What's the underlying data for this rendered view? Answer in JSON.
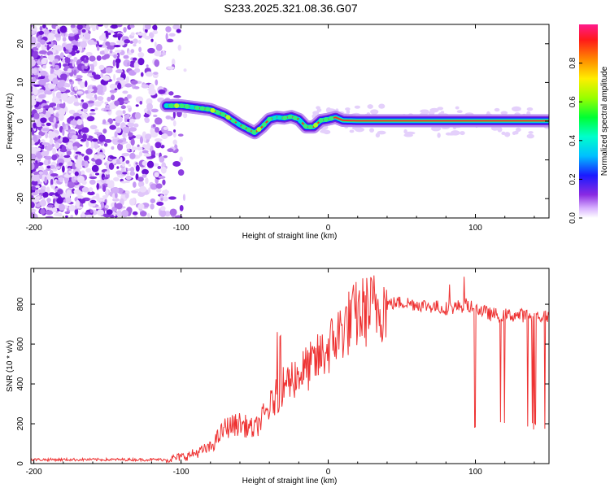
{
  "title": "S233.2025.321.08.36.G07",
  "chart_data": [
    {
      "type": "heatmap",
      "title": "S233.2025.321.08.36.G07",
      "xlabel": "Height of straight line (km)",
      "ylabel": "Frequency (Hz)",
      "xlim": [
        -202,
        150
      ],
      "ylim": [
        -25,
        25
      ],
      "xticks": [
        -200,
        -100,
        0,
        100
      ],
      "yticks": [
        -20,
        -10,
        0,
        10,
        20
      ],
      "colorbar": {
        "label": "Normalized spectral amplitude",
        "range": [
          0.0,
          1.0
        ],
        "ticks": [
          "0.0",
          "0.2",
          "0.4",
          "0.6",
          "0.8"
        ]
      },
      "ridge": {
        "x": [
          -110,
          -100,
          -90,
          -80,
          -70,
          -60,
          -50,
          -45,
          -40,
          -35,
          -30,
          -25,
          -20,
          -15,
          -10,
          -5,
          0,
          5,
          10,
          20,
          40,
          60,
          80,
          100,
          120,
          150
        ],
        "y": [
          4,
          4,
          3.5,
          3,
          1.5,
          -1,
          -3,
          -1.5,
          0.5,
          1,
          0.8,
          1.2,
          0.5,
          -1.5,
          -1.5,
          0.2,
          0.5,
          1,
          0.2,
          0.1,
          0.1,
          0.1,
          0.1,
          0.1,
          0.1,
          0.1
        ]
      }
    },
    {
      "type": "line",
      "xlabel": "Height of straight line (km)",
      "ylabel": "SNR (10 * v/v)",
      "xlim": [
        -202,
        150
      ],
      "ylim": [
        0,
        980
      ],
      "xticks": [
        -200,
        -100,
        0,
        100
      ],
      "yticks": [
        0,
        200,
        400,
        600,
        800
      ],
      "series": [
        {
          "name": "SNR",
          "color": "#ee3333",
          "envelope_x": [
            -200,
            -150,
            -110,
            -95,
            -80,
            -70,
            -60,
            -50,
            -40,
            -30,
            -20,
            -10,
            0,
            10,
            20,
            30,
            40,
            50,
            60,
            70,
            80,
            90,
            95,
            100,
            110,
            120,
            130,
            140,
            150
          ],
          "envelope_y": [
            20,
            20,
            20,
            40,
            80,
            180,
            200,
            170,
            280,
            400,
            450,
            500,
            580,
            680,
            750,
            780,
            800,
            810,
            800,
            790,
            780,
            790,
            800,
            780,
            750,
            745,
            745,
            740,
            740
          ]
        }
      ]
    }
  ]
}
